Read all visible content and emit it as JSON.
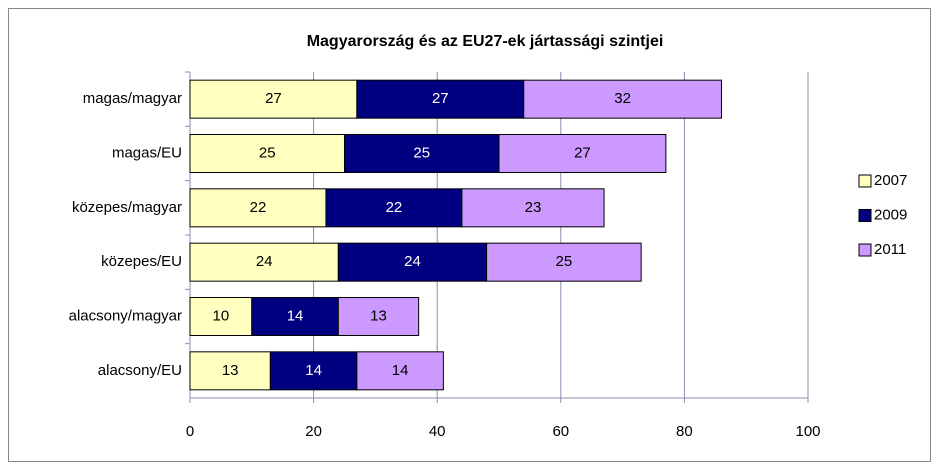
{
  "chart_data": {
    "type": "stacked-bar-horizontal",
    "title": "Magyarország és az EU27-ek jártassági szintjei",
    "categories": [
      "magas/magyar",
      "magas/EU",
      "közepes/magyar",
      "közepes/EU",
      "alacsony/magyar",
      "alacsony/EU"
    ],
    "series": [
      {
        "name": "2007",
        "color": "#ffffc0",
        "values": [
          27,
          25,
          22,
          24,
          10,
          13
        ]
      },
      {
        "name": "2009",
        "color": "#000080",
        "values": [
          27,
          25,
          22,
          24,
          14,
          14
        ]
      },
      {
        "name": "2011",
        "color": "#cc99ff",
        "values": [
          32,
          27,
          23,
          25,
          13,
          14
        ]
      }
    ],
    "xlim": [
      0,
      100
    ],
    "xticks": [
      0,
      20,
      40,
      60,
      80,
      100
    ],
    "grid": true,
    "legend": "right"
  }
}
